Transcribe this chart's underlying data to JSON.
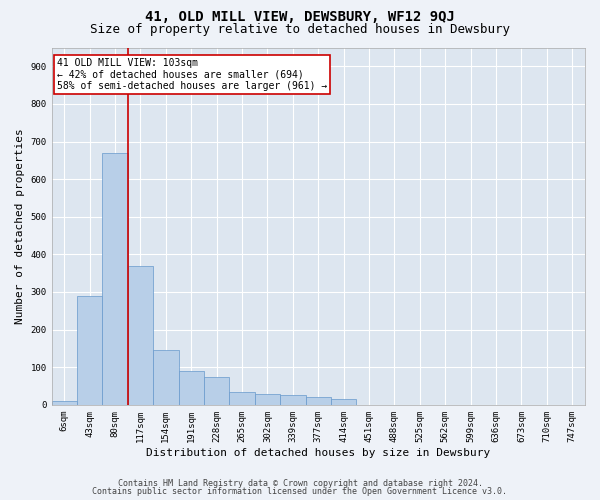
{
  "title": "41, OLD MILL VIEW, DEWSBURY, WF12 9QJ",
  "subtitle": "Size of property relative to detached houses in Dewsbury",
  "xlabel": "Distribution of detached houses by size in Dewsbury",
  "ylabel": "Number of detached properties",
  "bin_labels": [
    "6sqm",
    "43sqm",
    "80sqm",
    "117sqm",
    "154sqm",
    "191sqm",
    "228sqm",
    "265sqm",
    "302sqm",
    "339sqm",
    "377sqm",
    "414sqm",
    "451sqm",
    "488sqm",
    "525sqm",
    "562sqm",
    "599sqm",
    "636sqm",
    "673sqm",
    "710sqm",
    "747sqm"
  ],
  "bar_heights": [
    10,
    290,
    670,
    370,
    145,
    90,
    75,
    35,
    28,
    25,
    20,
    15,
    0,
    0,
    0,
    0,
    0,
    0,
    0,
    0,
    0
  ],
  "bar_color": "#b8cfe8",
  "bar_edge_color": "#6699cc",
  "vline_color": "#cc0000",
  "annotation_text": "41 OLD MILL VIEW: 103sqm\n← 42% of detached houses are smaller (694)\n58% of semi-detached houses are larger (961) →",
  "annotation_box_color": "#ffffff",
  "annotation_box_edge": "#cc0000",
  "ylim": [
    0,
    950
  ],
  "yticks": [
    0,
    100,
    200,
    300,
    400,
    500,
    600,
    700,
    800,
    900
  ],
  "footer_line1": "Contains HM Land Registry data © Crown copyright and database right 2024.",
  "footer_line2": "Contains public sector information licensed under the Open Government Licence v3.0.",
  "background_color": "#eef2f8",
  "plot_bg_color": "#dde6f0",
  "grid_color": "#ffffff",
  "title_fontsize": 10,
  "subtitle_fontsize": 9,
  "axis_label_fontsize": 8,
  "tick_fontsize": 6.5,
  "annotation_fontsize": 7,
  "footer_fontsize": 6
}
